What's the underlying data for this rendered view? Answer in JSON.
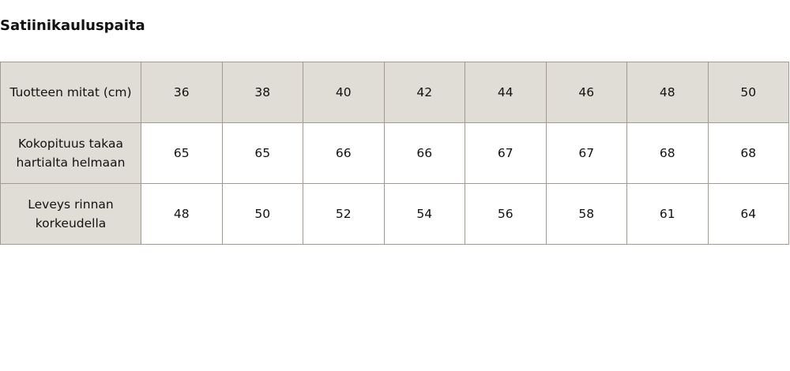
{
  "title": "Satiinikauluspaita",
  "table": {
    "header": {
      "label": "Tuotteen mitat (cm)",
      "values": [
        "36",
        "38",
        "40",
        "42",
        "44",
        "46",
        "48",
        "50"
      ]
    },
    "rows": [
      {
        "label": "Kokopituus takaa hartialta helmaan",
        "values": [
          "65",
          "65",
          "66",
          "66",
          "67",
          "67",
          "68",
          "68"
        ]
      },
      {
        "label": "Leveys rinnan korkeudella",
        "values": [
          "48",
          "50",
          "52",
          "54",
          "56",
          "58",
          "61",
          "64"
        ]
      }
    ]
  },
  "colors": {
    "header_bg": "#e0ddd6",
    "border": "#a39a8f"
  }
}
